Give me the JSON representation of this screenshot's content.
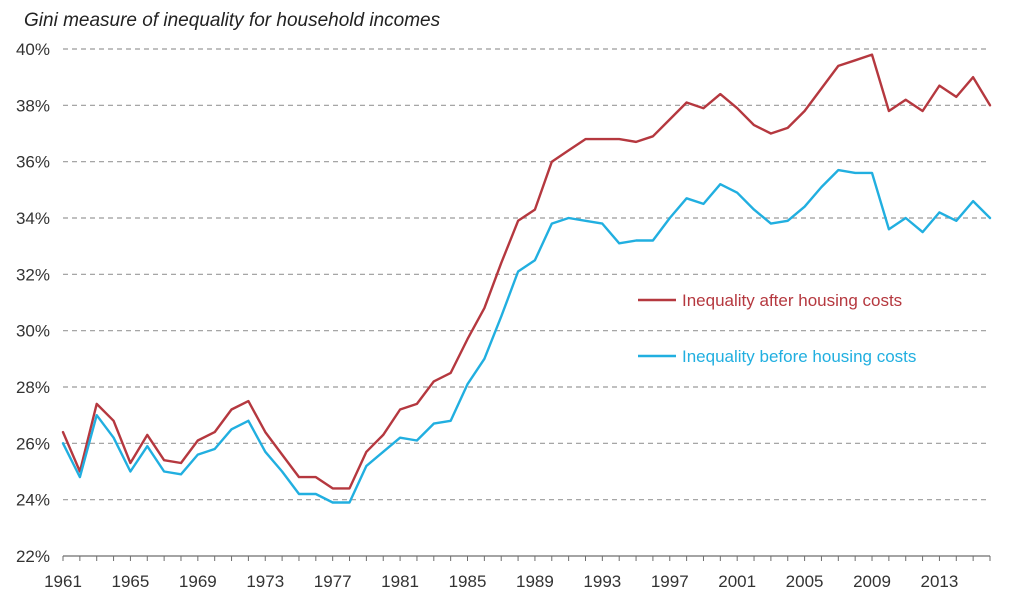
{
  "chart_data": {
    "type": "line",
    "title": "Gini measure of inequality for household incomes",
    "xlabel": "",
    "ylabel": "",
    "xlim": [
      1961,
      2016
    ],
    "ylim": [
      22,
      40
    ],
    "y_ticks": [
      22,
      24,
      26,
      28,
      30,
      32,
      34,
      36,
      38,
      40
    ],
    "y_tick_labels": [
      "22%",
      "24%",
      "26%",
      "28%",
      "30%",
      "32%",
      "34%",
      "36%",
      "38%",
      "40%"
    ],
    "x_ticks": [
      1961,
      1965,
      1969,
      1973,
      1977,
      1981,
      1985,
      1989,
      1993,
      1997,
      2001,
      2005,
      2009,
      2013
    ],
    "x_tick_labels": [
      "1961",
      "1965",
      "1969",
      "1973",
      "1977",
      "1981",
      "1985",
      "1989",
      "1993",
      "1997",
      "2001",
      "2005",
      "2009",
      "2013"
    ],
    "grid": "horizontal dashed",
    "legend_position": "middle-right",
    "x": [
      1961,
      1962,
      1963,
      1964,
      1965,
      1966,
      1967,
      1968,
      1969,
      1970,
      1971,
      1972,
      1973,
      1974,
      1975,
      1976,
      1977,
      1978,
      1979,
      1980,
      1981,
      1982,
      1983,
      1984,
      1985,
      1986,
      1987,
      1988,
      1989,
      1990,
      1991,
      1992,
      1993,
      1994,
      1995,
      1996,
      1997,
      1998,
      1999,
      2000,
      2001,
      2002,
      2003,
      2004,
      2005,
      2006,
      2007,
      2008,
      2009,
      2010,
      2011,
      2012,
      2013,
      2014,
      2015,
      2016
    ],
    "series": [
      {
        "name": "Inequality after housing costs",
        "color": "#b5383f",
        "values": [
          26.4,
          25.0,
          27.4,
          26.8,
          25.3,
          26.3,
          25.4,
          25.3,
          26.1,
          26.4,
          27.2,
          27.5,
          26.4,
          25.6,
          24.8,
          24.8,
          24.4,
          24.4,
          25.7,
          26.3,
          27.2,
          27.4,
          28.2,
          28.5,
          29.7,
          30.8,
          32.4,
          33.9,
          34.3,
          36.0,
          36.4,
          36.8,
          36.8,
          36.8,
          36.7,
          36.9,
          37.5,
          38.1,
          37.9,
          38.4,
          37.9,
          37.3,
          37.0,
          37.2,
          37.8,
          38.6,
          39.4,
          39.6,
          39.8,
          37.8,
          38.2,
          37.8,
          38.7,
          38.3,
          39.0,
          38.0
        ]
      },
      {
        "name": "Inequality before housing costs",
        "color": "#21afe0",
        "values": [
          26.0,
          24.8,
          27.0,
          26.2,
          25.0,
          25.9,
          25.0,
          24.9,
          25.6,
          25.8,
          26.5,
          26.8,
          25.7,
          25.0,
          24.2,
          24.2,
          23.9,
          23.9,
          25.2,
          25.7,
          26.2,
          26.1,
          26.7,
          26.8,
          28.1,
          29.0,
          30.5,
          32.1,
          32.5,
          33.8,
          34.0,
          33.9,
          33.8,
          33.1,
          33.2,
          33.2,
          34.0,
          34.7,
          34.5,
          35.2,
          34.9,
          34.3,
          33.8,
          33.9,
          34.4,
          35.1,
          35.7,
          35.6,
          35.6,
          33.6,
          34.0,
          33.5,
          34.2,
          33.9,
          34.6,
          34.0
        ]
      }
    ]
  }
}
